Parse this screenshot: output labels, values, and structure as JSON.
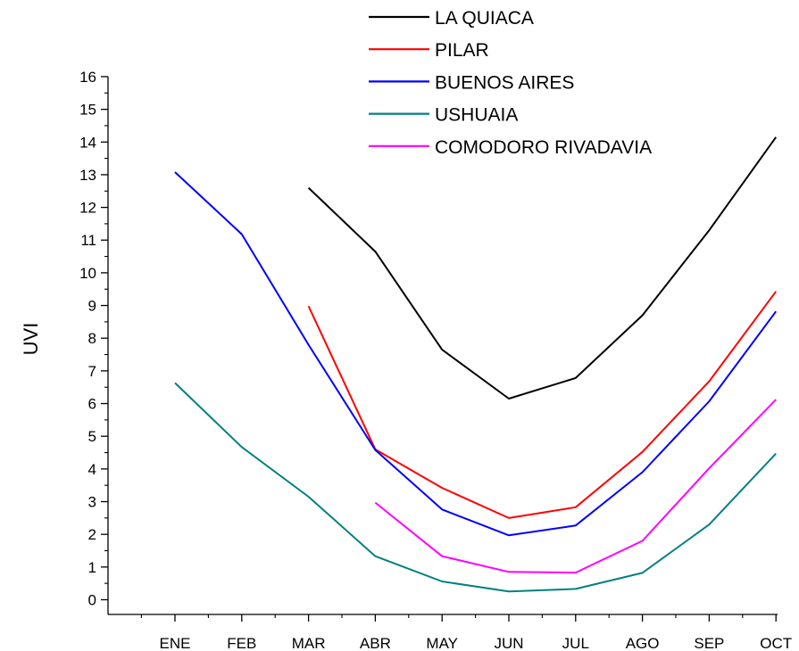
{
  "chart_data": {
    "type": "line",
    "title": "",
    "xlabel": "",
    "ylabel": "UVI",
    "categories": [
      "ENE",
      "FEB",
      "MAR",
      "ABR",
      "MAY",
      "JUN",
      "JUL",
      "AGO",
      "SEP",
      "OCT"
    ],
    "yticks": [
      "0",
      "1",
      "2",
      "3",
      "4",
      "5",
      "6",
      "7",
      "8",
      "9",
      "10",
      "11",
      "12",
      "13",
      "14",
      "15",
      "16"
    ],
    "ylim": [
      -0.4,
      16
    ],
    "grid": false,
    "legend_position": "top-right",
    "series": [
      {
        "name": "LA QUIACA",
        "color": "#000000",
        "values": [
          null,
          null,
          12.6,
          10.65,
          7.65,
          6.15,
          6.78,
          8.7,
          11.3,
          14.15
        ]
      },
      {
        "name": "PILAR",
        "color": "#ff0000",
        "values": [
          null,
          null,
          8.98,
          4.6,
          3.42,
          2.5,
          2.83,
          4.52,
          6.68,
          9.43
        ]
      },
      {
        "name": "BUENOS AIRES",
        "color": "#0000ff",
        "values": [
          13.08,
          11.18,
          7.8,
          4.58,
          2.76,
          1.97,
          2.27,
          3.9,
          6.07,
          8.82
        ]
      },
      {
        "name": "USHUAIA",
        "color": "#008080",
        "values": [
          6.63,
          4.67,
          3.15,
          1.33,
          0.56,
          0.25,
          0.33,
          0.82,
          2.3,
          4.47
        ]
      },
      {
        "name": "COMODORO RIVADAVIA",
        "color": "#ff00ff",
        "values": [
          null,
          null,
          null,
          2.97,
          1.33,
          0.85,
          0.83,
          1.8,
          4.02,
          6.12
        ]
      }
    ]
  }
}
